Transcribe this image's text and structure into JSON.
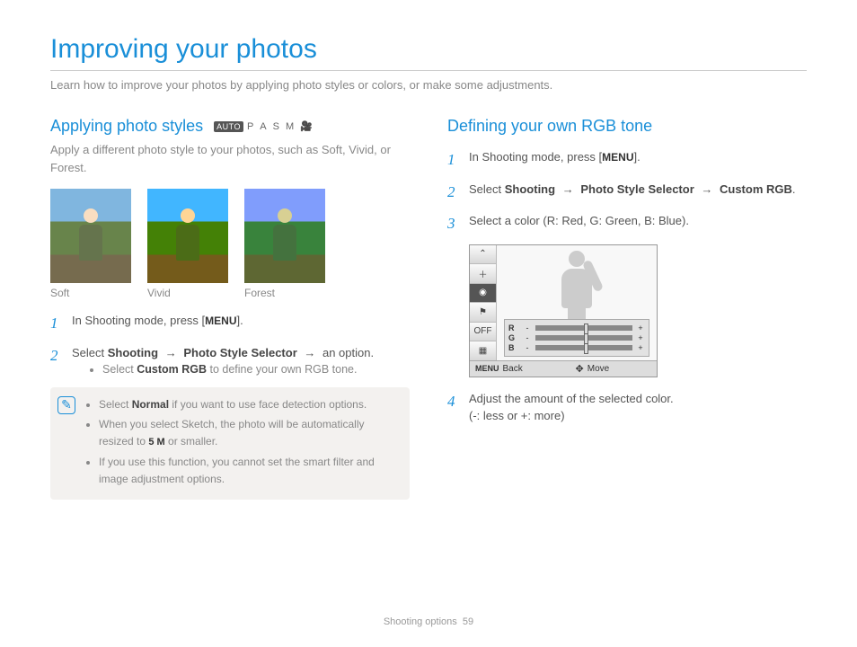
{
  "page": {
    "title": "Improving your photos",
    "intro": "Learn how to improve your photos by applying photo styles or colors, or make some adjustments.",
    "footer_section": "Shooting options",
    "footer_page": "59"
  },
  "left": {
    "heading": "Applying photo styles",
    "modes": {
      "auto": "AUTO",
      "p": "P",
      "a": "A",
      "s": "S",
      "m": "M"
    },
    "sub": "Apply a different photo style to your photos, such as Soft, Vivid, or Forest.",
    "thumbs": [
      {
        "label": "Soft"
      },
      {
        "label": "Vivid"
      },
      {
        "label": "Forest"
      }
    ],
    "steps": {
      "s1_a": "In Shooting mode, press [",
      "s1_menu": "MENU",
      "s1_b": "].",
      "s2_a": "Select ",
      "s2_shooting": "Shooting",
      "s2_arrow": "→",
      "s2_selector": "Photo Style Selector",
      "s2_b": " an option.",
      "s2_bullet_a": "Select ",
      "s2_bullet_custom": "Custom RGB",
      "s2_bullet_b": " to define your own RGB tone."
    },
    "note": {
      "b1_a": "Select ",
      "b1_normal": "Normal",
      "b1_b": " if you want to use face detection options.",
      "b2_a": "When you select Sketch, the photo will be automatically resized to ",
      "b2_5m": "5 M",
      "b2_b": " or smaller.",
      "b3": "If you use this function, you cannot set the smart filter and image adjustment options."
    }
  },
  "right": {
    "heading": "Defining your own RGB tone",
    "steps": {
      "s1_a": "In Shooting mode, press [",
      "s1_menu": "MENU",
      "s1_b": "].",
      "s2_a": "Select ",
      "s2_shooting": "Shooting",
      "s2_arrow": "→",
      "s2_selector": "Photo Style Selector",
      "s2_custom": "Custom RGB",
      "s2_dot": ".",
      "s3": "Select a color (R: Red, G: Green, B: Blue).",
      "s4_a": "Adjust the amount of the selected color.",
      "s4_b": "(-: less or +: more)"
    },
    "lcd": {
      "side_btns": [
        "⌃",
        "＋",
        "◉",
        "⚑",
        "OFF",
        "▦"
      ],
      "rgb_labels": [
        "R",
        "G",
        "B"
      ],
      "back_key": "MENU",
      "back_label": "Back",
      "move_label": "Move"
    }
  }
}
